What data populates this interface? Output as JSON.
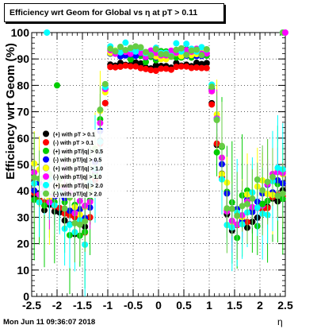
{
  "title": "Efficiency wrt Geom for Global vs   η at pT > 0.11",
  "footer_date": "Mon Jun 11 09:36:07 2018",
  "chart_data": {
    "type": "scatter",
    "title": "Efficiency wrt Geom for Global vs   η at pT > 0.11",
    "xlabel": "η",
    "ylabel": "Efficiency wrt Geom (%)",
    "xlim": [
      -2.5,
      2.5
    ],
    "ylim": [
      0,
      100
    ],
    "xticks": [
      "-2.5",
      "-2",
      "-1.5",
      "-1",
      "-0.5",
      "0",
      "0.5",
      "1",
      "1.5",
      "2",
      "2.5"
    ],
    "yticks": [
      "0",
      "10",
      "20",
      "30",
      "40",
      "50",
      "60",
      "70",
      "80",
      "90",
      "100"
    ],
    "grid": true,
    "legend_position": "middle-left",
    "series": [
      {
        "name": "(+) with pT > 0.1",
        "color": "#000000",
        "plateau": 88,
        "edge": 23,
        "noise": 3,
        "err": 4,
        "seed": 1
      },
      {
        "name": "(-) with pT > 0.1",
        "color": "#ff0000",
        "plateau": 87,
        "edge": 25,
        "noise": 2,
        "err": 3,
        "seed": 2
      },
      {
        "name": "(+) with pT/|q| > 0.5",
        "color": "#00cc00",
        "plateau": 92,
        "edge": 27,
        "noise": 9,
        "err": 16,
        "seed": 3
      },
      {
        "name": "(-) with pT/|q| > 0.5",
        "color": "#0000ff",
        "plateau": 92,
        "edge": 29,
        "noise": 4,
        "err": 6,
        "seed": 4
      },
      {
        "name": "(+) with pT/|q| > 1.0",
        "color": "#ffff00",
        "plateau": 92,
        "edge": 31,
        "noise": 6,
        "err": 12,
        "seed": 5
      },
      {
        "name": "(-) with pT/|q| > 1.0",
        "color": "#ff00ff",
        "plateau": 93,
        "edge": 30,
        "noise": 5,
        "err": 8,
        "seed": 6
      },
      {
        "name": "(+) with pT/|q| > 2.0",
        "color": "#00ffff",
        "plateau": 94,
        "edge": 27,
        "noise": 9,
        "err": 14,
        "seed": 7
      },
      {
        "name": "(-) with pT/|q| > 2.0",
        "color": "#66cc44",
        "plateau": 93,
        "edge": 32,
        "noise": 8,
        "err": 12,
        "seed": 8
      }
    ],
    "outliers": [
      {
        "series": 6,
        "x": -2.2,
        "y": 100
      },
      {
        "series": 6,
        "x": 2.45,
        "y": 100
      },
      {
        "series": 7,
        "x": 2.45,
        "y": 100
      },
      {
        "series": 5,
        "x": 2.5,
        "y": 100
      },
      {
        "series": 2,
        "x": -2.0,
        "y": 80
      },
      {
        "series": 2,
        "x": 2.05,
        "y": 35
      }
    ]
  }
}
